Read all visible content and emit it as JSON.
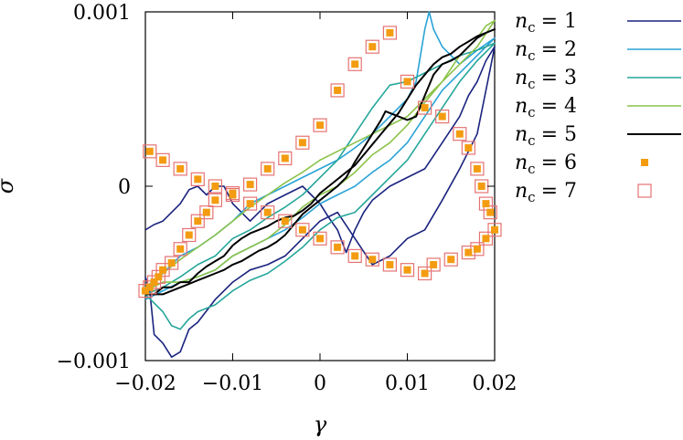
{
  "chart_data": {
    "type": "line",
    "xlabel": "γ",
    "ylabel": "σ",
    "xlim": [
      -0.02,
      0.02
    ],
    "ylim": [
      -0.001,
      0.001
    ],
    "grid": false,
    "legend_position": "right",
    "x_ticks": [
      {
        "value": -0.02,
        "label": "−0.02"
      },
      {
        "value": -0.01,
        "label": "−0.01"
      },
      {
        "value": 0,
        "label": "0"
      },
      {
        "value": 0.01,
        "label": "0.01"
      },
      {
        "value": 0.02,
        "label": "0.02"
      }
    ],
    "y_ticks": [
      {
        "value": -0.001,
        "label": "−0.001"
      },
      {
        "value": 0,
        "label": "0"
      },
      {
        "value": 0.001,
        "label": "0.001"
      }
    ],
    "series": [
      {
        "name": "n_c = 1",
        "legend_label": "= 1",
        "color": "#1a237e",
        "style": "line",
        "x": [
          -0.02,
          -0.0195,
          -0.019,
          -0.018,
          -0.017,
          -0.016,
          -0.015,
          -0.014,
          -0.012,
          -0.01,
          -0.008,
          -0.006,
          -0.004,
          -0.002,
          0.0,
          0.002,
          0.004,
          0.006,
          0.008,
          0.01,
          0.012,
          0.014,
          0.016,
          0.018,
          0.019,
          0.02,
          0.019,
          0.018,
          0.017,
          0.016,
          0.014,
          0.012,
          0.01,
          0.008,
          0.006,
          0.005,
          0.004,
          0.003,
          0.002,
          0.001,
          0.0,
          -0.001,
          -0.002,
          -0.004,
          -0.006,
          -0.008,
          -0.01,
          -0.011,
          -0.012,
          -0.013,
          -0.014,
          -0.015,
          -0.016,
          -0.017,
          -0.018,
          -0.019,
          -0.02
        ],
        "y": [
          -0.00052,
          -0.0006,
          -0.00085,
          -0.0009,
          -0.00098,
          -0.00095,
          -0.00082,
          -0.00078,
          -0.00065,
          -0.00055,
          -0.00048,
          -0.00045,
          -0.0004,
          -0.0003,
          -0.0002,
          -0.00015,
          -0.0003,
          -0.00045,
          -0.0004,
          -0.0003,
          -0.00025,
          -8e-05,
          0.0001,
          0.0003,
          0.00055,
          0.0008,
          0.00072,
          0.0006,
          0.00052,
          0.0004,
          0.00025,
          0.0001,
          5e-05,
          0.0,
          -8e-05,
          -0.00015,
          -0.00025,
          -0.00038,
          -0.00025,
          -0.00018,
          -0.0001,
          -5e-05,
          0.0,
          -5e-05,
          -0.0001,
          -0.0002,
          -0.0001,
          0.0,
          0.0,
          -5e-05,
          0.0,
          -2e-05,
          -0.0001,
          -0.00015,
          -0.0002,
          -0.00022,
          -0.00025
        ]
      },
      {
        "name": "n_c = 2",
        "legend_label": "= 2",
        "color": "#29a3d6",
        "style": "line",
        "x": [
          -0.02,
          -0.018,
          -0.016,
          -0.014,
          -0.012,
          -0.01,
          -0.008,
          -0.006,
          -0.004,
          -0.002,
          0.0,
          0.002,
          0.004,
          0.006,
          0.008,
          0.01,
          0.012,
          0.014,
          0.016,
          0.018,
          0.02,
          0.018,
          0.016,
          0.015,
          0.014,
          0.013,
          0.0125,
          0.012,
          0.011,
          0.01,
          0.008,
          0.006,
          0.004,
          0.002,
          0.0,
          -0.002,
          -0.004,
          -0.006,
          -0.008,
          -0.01,
          -0.012,
          -0.014,
          -0.016,
          -0.018,
          -0.02
        ],
        "y": [
          -0.00065,
          -0.0006,
          -0.00055,
          -0.00052,
          -0.00048,
          -0.0004,
          -0.00035,
          -0.0003,
          -0.00025,
          -0.00018,
          -0.0001,
          -5e-05,
          0.0,
          8e-05,
          0.00015,
          0.00025,
          0.0004,
          0.00055,
          0.00065,
          0.00075,
          0.00085,
          0.00078,
          0.0007,
          0.00075,
          0.0008,
          0.0009,
          0.001,
          0.0009,
          0.0006,
          0.0005,
          0.0004,
          0.0003,
          0.00022,
          0.00015,
          0.0001,
          5e-05,
          0.0,
          -5e-05,
          -0.0001,
          -0.0002,
          -0.00028,
          -0.00035,
          -0.0004,
          -0.0005,
          -0.0006
        ]
      },
      {
        "name": "n_c = 3",
        "legend_label": "= 3",
        "color": "#26a69a",
        "style": "line",
        "x": [
          -0.02,
          -0.018,
          -0.017,
          -0.016,
          -0.015,
          -0.014,
          -0.012,
          -0.01,
          -0.008,
          -0.006,
          -0.004,
          -0.002,
          0.0,
          0.002,
          0.004,
          0.006,
          0.008,
          0.01,
          0.012,
          0.014,
          0.016,
          0.018,
          0.02,
          0.018,
          0.016,
          0.014,
          0.012,
          0.01,
          0.008,
          0.006,
          0.004,
          0.002,
          0.0,
          -0.002,
          -0.004,
          -0.006,
          -0.008,
          -0.01,
          -0.012,
          -0.014,
          -0.016,
          -0.018,
          -0.02
        ],
        "y": [
          -0.00062,
          -0.00072,
          -0.0008,
          -0.00082,
          -0.00076,
          -0.00072,
          -0.00068,
          -0.0006,
          -0.00054,
          -0.0005,
          -0.00043,
          -0.00035,
          -0.00025,
          -0.00018,
          -0.00015,
          -5e-05,
          5e-05,
          0.00015,
          0.0003,
          0.00045,
          0.0006,
          0.00072,
          0.00082,
          0.00078,
          0.00075,
          0.0007,
          0.00065,
          0.0006,
          0.00058,
          0.00045,
          0.0003,
          0.00015,
          5e-05,
          -5e-05,
          -0.00012,
          -0.00018,
          -0.00025,
          -0.0003,
          -0.0004,
          -0.00045,
          -0.00052,
          -0.00058,
          -0.00062
        ]
      },
      {
        "name": "n_c = 4",
        "legend_label": "= 4",
        "color": "#8bc34a",
        "style": "line",
        "x": [
          -0.02,
          -0.018,
          -0.016,
          -0.014,
          -0.012,
          -0.01,
          -0.008,
          -0.006,
          -0.004,
          -0.002,
          0.0,
          0.002,
          0.004,
          0.006,
          0.008,
          0.01,
          0.012,
          0.014,
          0.016,
          0.018,
          0.02,
          0.019,
          0.018,
          0.016,
          0.014,
          0.012,
          0.01,
          0.008,
          0.006,
          0.004,
          0.002,
          0.0,
          -0.002,
          -0.004,
          -0.006,
          -0.008,
          -0.01,
          -0.012,
          -0.014,
          -0.016,
          -0.018,
          -0.02
        ],
        "y": [
          -0.0006,
          -0.00055,
          -0.00055,
          -0.00052,
          -0.00048,
          -0.0004,
          -0.00035,
          -0.0003,
          -0.00022,
          -0.00012,
          -5e-05,
          0.0,
          8e-05,
          0.00018,
          0.00025,
          0.00035,
          0.00048,
          0.0006,
          0.0007,
          0.0008,
          0.00095,
          0.00092,
          0.00085,
          0.00075,
          0.0006,
          0.0005,
          0.0004,
          0.00035,
          0.0003,
          0.00025,
          0.0002,
          0.00015,
          8e-05,
          2e-05,
          -5e-05,
          -0.00012,
          -0.0002,
          -0.00028,
          -0.00035,
          -0.00042,
          -0.0005,
          -0.00058
        ]
      },
      {
        "name": "n_c = 5",
        "legend_label": "= 5",
        "color": "#000000",
        "style": "line",
        "x": [
          -0.02,
          -0.019,
          -0.018,
          -0.017,
          -0.016,
          -0.015,
          -0.014,
          -0.013,
          -0.012,
          -0.011,
          -0.01,
          -0.009,
          -0.008,
          -0.007,
          -0.006,
          -0.005,
          -0.004,
          -0.003,
          -0.002,
          -0.001,
          0.0,
          0.001,
          0.002,
          0.003,
          0.004,
          0.005,
          0.006,
          0.007,
          0.008,
          0.009,
          0.01,
          0.011,
          0.012,
          0.013,
          0.014,
          0.015,
          0.016,
          0.017,
          0.018,
          0.019,
          0.02,
          0.019,
          0.018,
          0.017,
          0.016,
          0.015,
          0.014,
          0.013,
          0.012,
          0.011,
          0.01,
          0.009,
          0.008,
          0.0075,
          0.007,
          0.006,
          0.005,
          0.004,
          0.003,
          0.002,
          0.001,
          0.0,
          -0.001,
          -0.002,
          -0.003,
          -0.004,
          -0.005,
          -0.006,
          -0.007,
          -0.008,
          -0.009,
          -0.01,
          -0.011,
          -0.012,
          -0.013,
          -0.014,
          -0.015,
          -0.016,
          -0.017,
          -0.018,
          -0.019,
          -0.02
        ],
        "y": [
          -0.00062,
          -0.00062,
          -0.00058,
          -0.00058,
          -0.00055,
          -0.00055,
          -0.0005,
          -0.00046,
          -0.00043,
          -0.0004,
          -0.00034,
          -0.0003,
          -0.00027,
          -0.00025,
          -0.00023,
          -0.0002,
          -0.00018,
          -0.00017,
          -0.00014,
          -0.0001,
          -4e-05,
          0.0,
          4e-05,
          8e-05,
          0.00012,
          0.00018,
          0.00024,
          0.0003,
          0.00036,
          0.00042,
          0.0005,
          0.00058,
          0.00064,
          0.0007,
          0.00074,
          0.00076,
          0.0008,
          0.00083,
          0.00086,
          0.00088,
          0.0009,
          0.00088,
          0.00085,
          0.0008,
          0.00075,
          0.00072,
          0.0007,
          0.00064,
          0.00052,
          0.0004,
          0.00038,
          0.0004,
          0.00042,
          0.00043,
          0.00038,
          0.0003,
          0.00022,
          0.00014,
          5e-05,
          0.0,
          -4e-05,
          -8e-05,
          -0.00012,
          -0.00016,
          -0.00022,
          -0.00028,
          -0.00032,
          -0.00035,
          -0.00037,
          -0.0004,
          -0.00043,
          -0.00045,
          -0.00048,
          -0.0005,
          -0.00052,
          -0.00054,
          -0.00056,
          -0.00058,
          -0.0006,
          -0.00062,
          -0.00062,
          -0.00062
        ]
      },
      {
        "name": "n_c = 6",
        "legend_label": "= 6",
        "color": "#f39c12",
        "style": "marker-filled-square",
        "x": [
          -0.02,
          -0.0195,
          -0.019,
          -0.0185,
          -0.018,
          -0.017,
          -0.016,
          -0.015,
          -0.014,
          -0.013,
          -0.012,
          -0.01,
          -0.008,
          -0.006,
          -0.004,
          -0.002,
          0.0,
          0.002,
          0.004,
          0.006,
          0.008,
          0.01,
          0.012,
          0.014,
          0.016,
          0.017,
          0.018,
          0.0185,
          0.019,
          0.0195,
          0.02,
          0.019,
          0.018,
          0.017,
          0.015,
          0.013,
          0.012,
          0.01,
          0.008,
          0.006,
          0.004,
          0.002,
          0.0,
          -0.002,
          -0.004,
          -0.006,
          -0.008,
          -0.01,
          -0.012,
          -0.014,
          -0.016,
          -0.018,
          -0.0195
        ],
        "y": [
          -0.0006,
          -0.00058,
          -0.00055,
          -0.00052,
          -0.00048,
          -0.00044,
          -0.00036,
          -0.00028,
          -0.0002,
          -0.00015,
          -8e-05,
          -4e-05,
          1e-05,
          0.0001,
          0.00016,
          0.00025,
          0.00035,
          0.00055,
          0.0007,
          0.0008,
          0.00088,
          0.0006,
          0.00045,
          0.0004,
          0.0003,
          0.00022,
          0.0001,
          0.0,
          -0.0001,
          -0.00015,
          -0.00025,
          -0.0003,
          -0.00036,
          -0.00038,
          -0.00042,
          -0.00045,
          -0.0005,
          -0.00048,
          -0.00045,
          -0.00042,
          -0.0004,
          -0.00035,
          -0.0003,
          -0.00025,
          -0.0002,
          -0.00015,
          -0.0001,
          -5e-05,
          0.0,
          4e-05,
          0.0001,
          0.00015,
          0.0002
        ],
        "note": ""
      },
      {
        "name": "n_c = 7",
        "legend_label": "= 7",
        "color": "#e57373",
        "style": "marker-open-square",
        "x": [],
        "y": []
      }
    ]
  }
}
